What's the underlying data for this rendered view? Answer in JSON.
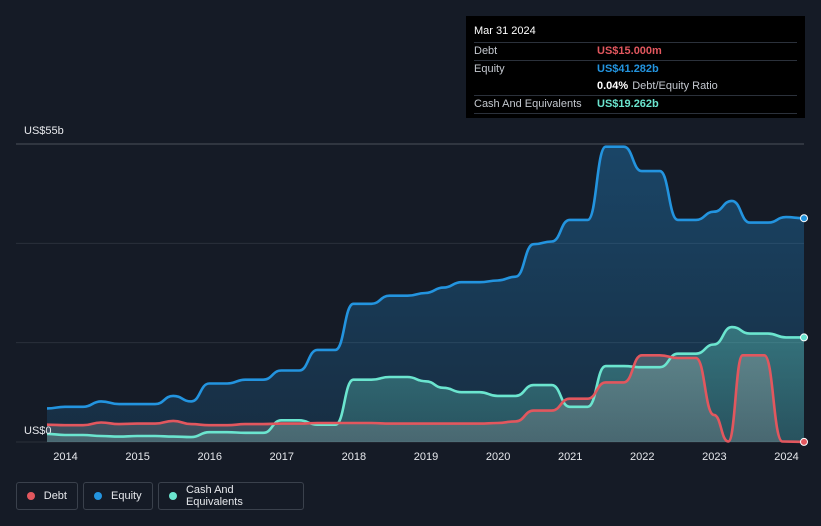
{
  "tooltip": {
    "date": "Mar 31 2024",
    "debt_label": "Debt",
    "debt_value": "US$15.000m",
    "equity_label": "Equity",
    "equity_value": "US$41.282b",
    "ratio_value": "0.04%",
    "ratio_label": "Debt/Equity Ratio",
    "cash_label": "Cash And Equivalents",
    "cash_value": "US$19.262b"
  },
  "colors": {
    "debt": "#e2575e",
    "equity": "#2394df",
    "cash": "#6be5cf",
    "background": "#151b26"
  },
  "legend": [
    {
      "label": "Debt",
      "color": "#e2575e"
    },
    {
      "label": "Equity",
      "color": "#2394df"
    },
    {
      "label": "Cash And Equivalents",
      "color": "#6be5cf"
    }
  ],
  "chart_data": {
    "type": "area",
    "y_top_label": "US$55b",
    "y_zero_label": "US$0",
    "ylim": [
      0,
      55
    ],
    "xlim": [
      2013.75,
      2024.25
    ],
    "x_ticks": [
      "2014",
      "2015",
      "2016",
      "2017",
      "2018",
      "2019",
      "2020",
      "2021",
      "2022",
      "2023",
      "2024"
    ],
    "grid": true,
    "series": [
      {
        "name": "Equity",
        "points": [
          [
            2013.75,
            6.2
          ],
          [
            2014.0,
            6.5
          ],
          [
            2014.25,
            6.5
          ],
          [
            2014.5,
            7.5
          ],
          [
            2014.75,
            7.0
          ],
          [
            2015.0,
            7.0
          ],
          [
            2015.25,
            7.0
          ],
          [
            2015.5,
            8.5
          ],
          [
            2015.75,
            7.5
          ],
          [
            2016.0,
            10.8
          ],
          [
            2016.25,
            10.8
          ],
          [
            2016.5,
            11.5
          ],
          [
            2016.75,
            11.5
          ],
          [
            2017.0,
            13.2
          ],
          [
            2017.25,
            13.2
          ],
          [
            2017.5,
            17.0
          ],
          [
            2017.75,
            17.0
          ],
          [
            2018.0,
            25.5
          ],
          [
            2018.25,
            25.5
          ],
          [
            2018.5,
            27.0
          ],
          [
            2018.75,
            27.0
          ],
          [
            2019.0,
            27.5
          ],
          [
            2019.25,
            28.5
          ],
          [
            2019.5,
            29.5
          ],
          [
            2019.75,
            29.5
          ],
          [
            2020.0,
            29.8
          ],
          [
            2020.25,
            30.5
          ],
          [
            2020.5,
            36.5
          ],
          [
            2020.75,
            37.0
          ],
          [
            2021.0,
            41.0
          ],
          [
            2021.25,
            41.0
          ],
          [
            2021.5,
            54.5
          ],
          [
            2021.75,
            54.5
          ],
          [
            2022.0,
            50.0
          ],
          [
            2022.25,
            50.0
          ],
          [
            2022.5,
            41.0
          ],
          [
            2022.75,
            41.0
          ],
          [
            2023.0,
            42.5
          ],
          [
            2023.25,
            44.5
          ],
          [
            2023.5,
            40.5
          ],
          [
            2023.75,
            40.5
          ],
          [
            2024.0,
            41.5
          ],
          [
            2024.25,
            41.3
          ]
        ]
      },
      {
        "name": "Cash And Equivalents",
        "points": [
          [
            2013.75,
            1.5
          ],
          [
            2014.0,
            1.3
          ],
          [
            2014.25,
            1.3
          ],
          [
            2014.5,
            1.1
          ],
          [
            2014.75,
            1.0
          ],
          [
            2015.0,
            1.1
          ],
          [
            2015.25,
            1.1
          ],
          [
            2015.5,
            1.0
          ],
          [
            2015.75,
            0.9
          ],
          [
            2016.0,
            1.8
          ],
          [
            2016.25,
            1.8
          ],
          [
            2016.5,
            1.7
          ],
          [
            2016.75,
            1.7
          ],
          [
            2017.0,
            4.0
          ],
          [
            2017.25,
            4.0
          ],
          [
            2017.5,
            3.2
          ],
          [
            2017.75,
            3.2
          ],
          [
            2018.0,
            11.5
          ],
          [
            2018.25,
            11.5
          ],
          [
            2018.5,
            12.0
          ],
          [
            2018.75,
            12.0
          ],
          [
            2019.0,
            11.2
          ],
          [
            2019.25,
            10.0
          ],
          [
            2019.5,
            9.2
          ],
          [
            2019.75,
            9.2
          ],
          [
            2020.0,
            8.5
          ],
          [
            2020.25,
            8.5
          ],
          [
            2020.5,
            10.5
          ],
          [
            2020.75,
            10.5
          ],
          [
            2021.0,
            6.5
          ],
          [
            2021.25,
            6.5
          ],
          [
            2021.5,
            14.0
          ],
          [
            2021.75,
            14.0
          ],
          [
            2022.0,
            13.8
          ],
          [
            2022.25,
            13.8
          ],
          [
            2022.5,
            16.3
          ],
          [
            2022.75,
            16.3
          ],
          [
            2023.0,
            18.0
          ],
          [
            2023.25,
            21.2
          ],
          [
            2023.5,
            20.0
          ],
          [
            2023.75,
            20.0
          ],
          [
            2024.0,
            19.3
          ],
          [
            2024.25,
            19.3
          ]
        ]
      },
      {
        "name": "Debt",
        "points": [
          [
            2013.75,
            3.2
          ],
          [
            2014.0,
            3.1
          ],
          [
            2014.25,
            3.1
          ],
          [
            2014.5,
            3.6
          ],
          [
            2014.75,
            3.3
          ],
          [
            2015.0,
            3.4
          ],
          [
            2015.25,
            3.4
          ],
          [
            2015.5,
            3.9
          ],
          [
            2015.75,
            3.3
          ],
          [
            2016.0,
            3.1
          ],
          [
            2016.25,
            3.1
          ],
          [
            2016.5,
            3.3
          ],
          [
            2016.75,
            3.3
          ],
          [
            2017.0,
            3.4
          ],
          [
            2017.25,
            3.4
          ],
          [
            2017.5,
            3.5
          ],
          [
            2017.75,
            3.5
          ],
          [
            2018.0,
            3.5
          ],
          [
            2018.25,
            3.5
          ],
          [
            2018.5,
            3.4
          ],
          [
            2018.75,
            3.4
          ],
          [
            2019.0,
            3.4
          ],
          [
            2019.25,
            3.4
          ],
          [
            2019.5,
            3.4
          ],
          [
            2019.75,
            3.4
          ],
          [
            2020.0,
            3.5
          ],
          [
            2020.25,
            3.8
          ],
          [
            2020.5,
            5.8
          ],
          [
            2020.75,
            5.8
          ],
          [
            2021.0,
            8.0
          ],
          [
            2021.25,
            8.0
          ],
          [
            2021.5,
            11.0
          ],
          [
            2021.75,
            11.0
          ],
          [
            2022.0,
            16.0
          ],
          [
            2022.25,
            16.0
          ],
          [
            2022.5,
            15.5
          ],
          [
            2022.75,
            15.5
          ],
          [
            2023.0,
            5.0
          ],
          [
            2023.2,
            0.1
          ],
          [
            2023.4,
            16.0
          ],
          [
            2023.7,
            16.0
          ],
          [
            2023.95,
            0.1
          ],
          [
            2024.25,
            0.015
          ]
        ]
      }
    ]
  }
}
